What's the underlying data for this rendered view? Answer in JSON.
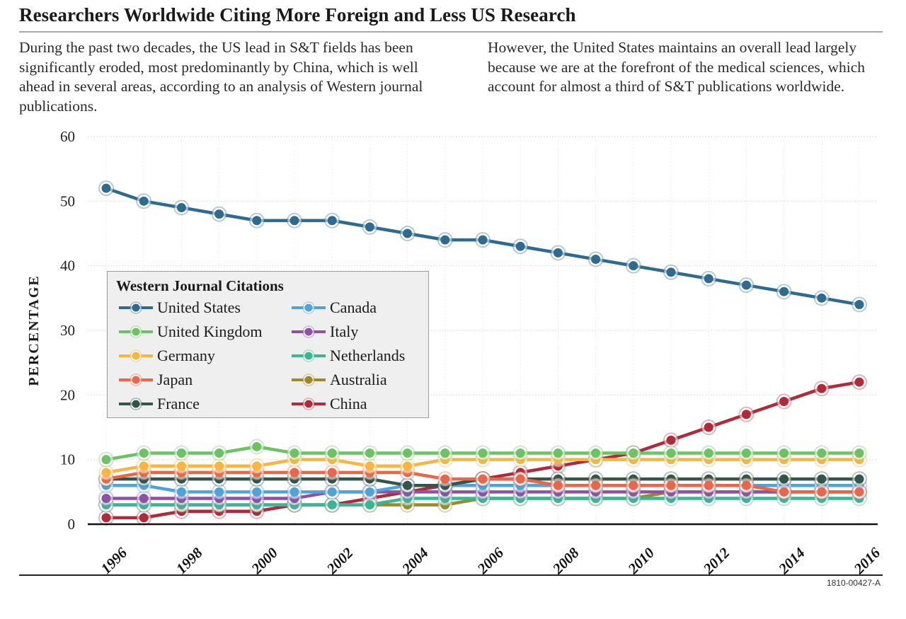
{
  "header": {
    "title": "Researchers Worldwide Citing More Foreign and Less US Research",
    "intro_left": "During the past two decades, the US lead in S&T fields has been significantly eroded, most predominantly by China, which is well ahead in several areas, according to an analysis of Western journal publications.",
    "intro_right": "However, the United States maintains an overall lead largely because we are at the forefront of the medical sciences, which account for almost a third of S&T publications worldwide."
  },
  "footer": {
    "figure_id": "1810-00427-A"
  },
  "chart_data": {
    "type": "line",
    "title": "Researchers Worldwide Citing More Foreign and Less US Research",
    "xlabel": "",
    "ylabel": "PERCENTAGE",
    "ylim": [
      0,
      60
    ],
    "yticks": [
      0,
      10,
      20,
      30,
      40,
      50,
      60
    ],
    "xlim": [
      1996,
      2016
    ],
    "xticks": [
      1996,
      1998,
      2000,
      2002,
      2004,
      2006,
      2008,
      2010,
      2012,
      2014,
      2016
    ],
    "grid": true,
    "legend_title": "Western Journal Citations",
    "legend_placement": "center-left",
    "x": [
      1996,
      1997,
      1998,
      1999,
      2000,
      2001,
      2002,
      2003,
      2004,
      2005,
      2006,
      2007,
      2008,
      2009,
      2010,
      2011,
      2012,
      2013,
      2014,
      2015,
      2016
    ],
    "series": [
      {
        "name": "United States",
        "color": "#2f6a8f",
        "values": [
          52,
          50,
          49,
          48,
          47,
          47,
          47,
          46,
          45,
          44,
          44,
          43,
          42,
          41,
          40,
          39,
          38,
          37,
          36,
          35,
          34
        ]
      },
      {
        "name": "United Kingdom",
        "color": "#6cc265",
        "values": [
          10,
          11,
          11,
          11,
          12,
          11,
          11,
          11,
          11,
          11,
          11,
          11,
          11,
          11,
          11,
          11,
          11,
          11,
          11,
          11,
          11
        ]
      },
      {
        "name": "Germany",
        "color": "#f7b541",
        "values": [
          8,
          9,
          9,
          9,
          9,
          10,
          10,
          9,
          9,
          10,
          10,
          10,
          10,
          10,
          10,
          10,
          10,
          10,
          10,
          10,
          10
        ]
      },
      {
        "name": "Japan",
        "color": "#e8664a",
        "values": [
          7,
          8,
          8,
          8,
          8,
          8,
          8,
          8,
          8,
          7,
          7,
          7,
          6,
          6,
          6,
          6,
          6,
          6,
          5,
          5,
          5
        ]
      },
      {
        "name": "France",
        "color": "#33564a",
        "values": [
          7,
          7,
          7,
          7,
          7,
          7,
          7,
          7,
          6,
          6,
          7,
          7,
          7,
          7,
          7,
          7,
          7,
          7,
          7,
          7,
          7
        ]
      },
      {
        "name": "Canada",
        "color": "#4fa3d6",
        "values": [
          6,
          6,
          5,
          5,
          5,
          5,
          5,
          5,
          6,
          6,
          6,
          6,
          6,
          6,
          6,
          6,
          6,
          6,
          6,
          6,
          6
        ]
      },
      {
        "name": "Italy",
        "color": "#8e51a3",
        "values": [
          4,
          4,
          4,
          4,
          4,
          4,
          5,
          5,
          5,
          5,
          5,
          5,
          5,
          5,
          5,
          5,
          5,
          5,
          5,
          5,
          5
        ]
      },
      {
        "name": "Netherlands",
        "color": "#3bb594",
        "values": [
          3,
          3,
          3,
          3,
          3,
          3,
          3,
          3,
          4,
          4,
          4,
          4,
          4,
          4,
          4,
          4,
          4,
          4,
          4,
          4,
          4
        ]
      },
      {
        "name": "Australia",
        "color": "#9a8a2a",
        "values": [
          3,
          3,
          3,
          3,
          3,
          3,
          3,
          3,
          3,
          3,
          4,
          4,
          4,
          4,
          4,
          5,
          5,
          5,
          5,
          5,
          5
        ]
      },
      {
        "name": "China",
        "color": "#b02a3a",
        "values": [
          1,
          1,
          2,
          2,
          2,
          3,
          3,
          4,
          5,
          6,
          7,
          8,
          9,
          10,
          11,
          13,
          15,
          17,
          19,
          21,
          22
        ]
      }
    ]
  }
}
